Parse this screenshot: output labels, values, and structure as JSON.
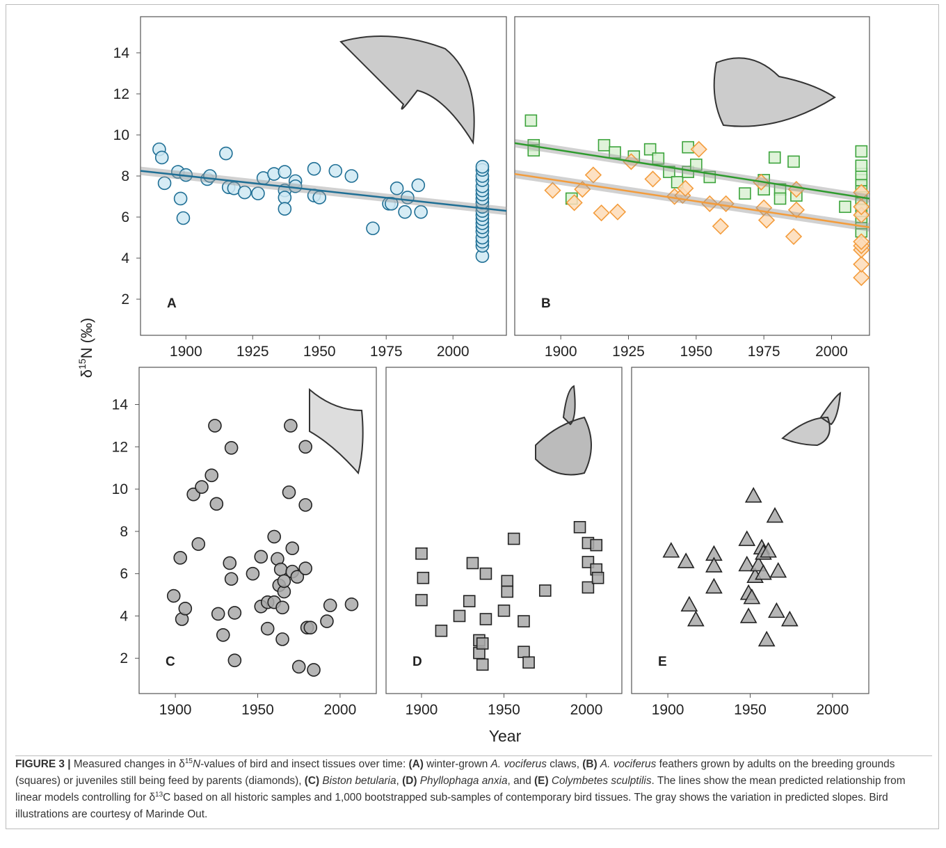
{
  "chart_data": [
    {
      "type": "scatter",
      "title": "A",
      "xlim": [
        1883,
        2020
      ],
      "ylim": [
        0.24,
        15.76
      ],
      "xticks": [
        1900,
        1925,
        1950,
        1975,
        2000
      ],
      "yticks": [
        2,
        4,
        6,
        8,
        10,
        12,
        14
      ],
      "series": [
        {
          "marker": "circle",
          "color": "#1f6f95",
          "fill": "#cfe9f3",
          "x": [
            1890,
            1891,
            1892,
            1897,
            1898,
            1899,
            1900,
            1908,
            1909,
            1915,
            1916,
            1918,
            1922,
            1927,
            1929,
            1933,
            1937,
            1937,
            1937,
            1937,
            1941,
            1941,
            1948,
            1948,
            1950,
            1956,
            1962,
            1970,
            1976,
            1977,
            1979,
            1982,
            1983,
            1987,
            1988,
            2011,
            2011,
            2011,
            2011,
            2011,
            2011,
            2011,
            2011,
            2011,
            2011,
            2011,
            2011,
            2011,
            2011,
            2011,
            2011,
            2011,
            2011,
            2011,
            2011
          ],
          "values": [
            9.3,
            8.9,
            7.65,
            8.2,
            6.9,
            5.95,
            8.05,
            7.85,
            8.0,
            9.1,
            7.45,
            7.4,
            7.2,
            7.15,
            7.9,
            8.1,
            8.2,
            7.3,
            6.95,
            6.4,
            7.75,
            7.5,
            8.35,
            7.05,
            6.95,
            8.25,
            8.0,
            5.45,
            6.65,
            6.65,
            7.4,
            6.25,
            6.95,
            7.55,
            6.25,
            4.1,
            4.6,
            4.8,
            5.0,
            5.3,
            5.5,
            5.7,
            5.9,
            6.1,
            6.3,
            6.5,
            6.7,
            6.9,
            7.1,
            7.3,
            7.5,
            7.8,
            8.0,
            8.3,
            8.45
          ]
        }
      ],
      "lines": [
        {
          "color": "#1f6f95",
          "x": [
            1883,
            2020
          ],
          "values": [
            8.25,
            6.3
          ]
        }
      ]
    },
    {
      "type": "scatter",
      "title": "B",
      "xlim": [
        1883,
        2014
      ],
      "ylim": [
        0.24,
        15.76
      ],
      "xticks": [
        1900,
        1925,
        1950,
        1975,
        2000
      ],
      "series": [
        {
          "marker": "square",
          "color": "#3ba33b",
          "fill": "#dbf1d3",
          "x": [
            1889,
            1890,
            1890,
            1904,
            1916,
            1920,
            1927,
            1933,
            1936,
            1940,
            1943,
            1947,
            1947,
            1950,
            1955,
            1968,
            1975,
            1975,
            1979,
            1981,
            1981,
            1986,
            1987,
            2005,
            2011,
            2011,
            2011,
            2011,
            2011,
            2011,
            2011,
            2011,
            2011,
            2011,
            2011,
            2011
          ],
          "values": [
            10.7,
            9.5,
            9.25,
            6.9,
            9.5,
            9.15,
            8.95,
            9.3,
            8.85,
            8.2,
            7.7,
            9.4,
            8.2,
            8.55,
            7.95,
            7.15,
            7.8,
            7.35,
            8.9,
            7.35,
            6.9,
            8.7,
            7.05,
            6.5,
            5.3,
            5.7,
            6.0,
            6.3,
            6.6,
            6.9,
            7.2,
            7.5,
            7.8,
            8.1,
            8.5,
            9.2
          ]
        },
        {
          "marker": "diamond",
          "color": "#f39c3c",
          "fill": "#fddcb8",
          "x": [
            1897,
            1905,
            1908,
            1912,
            1915,
            1921,
            1926,
            1934,
            1942,
            1945,
            1946,
            1951,
            1955,
            1959,
            1961,
            1974,
            1975,
            1976,
            1986,
            1987,
            1987,
            2011,
            2011,
            2011,
            2011,
            2011,
            2011,
            2011,
            2011
          ],
          "values": [
            7.3,
            6.7,
            7.35,
            8.05,
            6.2,
            6.25,
            8.7,
            7.85,
            7.0,
            7.05,
            7.4,
            9.3,
            6.65,
            5.55,
            6.65,
            7.7,
            6.45,
            5.85,
            5.05,
            6.35,
            7.35,
            3.05,
            3.7,
            4.4,
            4.6,
            4.8,
            6.1,
            6.5,
            7.2
          ]
        }
      ],
      "lines": [
        {
          "color": "#2e9b2e",
          "x": [
            1883,
            2014
          ],
          "values": [
            9.6,
            6.9
          ]
        },
        {
          "color": "#f39c3c",
          "x": [
            1883,
            2014
          ],
          "values": [
            8.1,
            5.5
          ]
        }
      ]
    },
    {
      "type": "scatter",
      "title": "C",
      "xlim": [
        1878,
        2022
      ],
      "ylim": [
        0.33,
        15.76
      ],
      "xticks": [
        1900,
        1950,
        2000
      ],
      "yticks": [
        2,
        4,
        6,
        8,
        10,
        12,
        14
      ],
      "series": [
        {
          "marker": "circle",
          "color": "#222222",
          "fill": "#a9a9a9",
          "x": [
            1899,
            1903,
            1904,
            1906,
            1911,
            1914,
            1916,
            1922,
            1924,
            1925,
            1926,
            1929,
            1933,
            1934,
            1934,
            1936,
            1936,
            1947,
            1952,
            1952,
            1956,
            1956,
            1960,
            1960,
            1962,
            1963,
            1964,
            1965,
            1965,
            1966,
            1966,
            1969,
            1970,
            1971,
            1971,
            1974,
            1975,
            1979,
            1979,
            1979,
            1980,
            1982,
            1984,
            1992,
            1994,
            2007
          ],
          "values": [
            4.95,
            6.75,
            3.85,
            4.35,
            9.75,
            7.4,
            10.1,
            10.65,
            13.0,
            9.3,
            4.1,
            3.1,
            6.5,
            11.95,
            5.75,
            4.15,
            1.9,
            6.0,
            6.8,
            4.45,
            4.65,
            3.4,
            7.75,
            4.65,
            6.7,
            5.45,
            6.2,
            4.4,
            2.9,
            5.15,
            5.65,
            9.85,
            13.0,
            7.2,
            6.1,
            5.85,
            1.6,
            12.0,
            9.25,
            6.25,
            3.45,
            3.45,
            1.45,
            3.75,
            4.5,
            4.55
          ]
        }
      ]
    },
    {
      "type": "scatter",
      "title": "D",
      "xlim": [
        1878.5,
        2021.5
      ],
      "ylim": [
        0.33,
        15.76
      ],
      "xticks": [
        1900,
        1950,
        2000
      ],
      "series": [
        {
          "marker": "square",
          "color": "#222222",
          "fill": "#a9a9a9",
          "x": [
            1900,
            1901,
            1900,
            1912,
            1923,
            1929,
            1931,
            1935,
            1935,
            1937,
            1939,
            1939,
            1937,
            1950,
            1952,
            1952,
            1956,
            1962,
            1962,
            1965,
            1975,
            1996,
            2001,
            2001,
            2001,
            2006,
            2006,
            2007
          ],
          "values": [
            6.95,
            5.8,
            4.75,
            3.3,
            4.0,
            4.7,
            6.5,
            2.85,
            2.25,
            2.7,
            3.85,
            6.0,
            1.7,
            4.25,
            5.65,
            5.15,
            7.65,
            3.75,
            2.3,
            1.8,
            5.2,
            8.2,
            7.45,
            6.55,
            5.35,
            7.35,
            6.2,
            5.8
          ]
        }
      ]
    },
    {
      "type": "scatter",
      "title": "E",
      "xlim": [
        1878,
        2022
      ],
      "ylim": [
        0.33,
        15.76
      ],
      "xticks": [
        1900,
        1950,
        2000
      ],
      "series": [
        {
          "marker": "triangle",
          "color": "#222222",
          "fill": "#a9a9a9",
          "x": [
            1902,
            1911,
            1913,
            1917,
            1928,
            1928,
            1928,
            1948,
            1948,
            1949,
            1949,
            1951,
            1952,
            1953,
            1955,
            1957,
            1958,
            1958,
            1960,
            1961,
            1965,
            1966,
            1967,
            1974
          ],
          "values": [
            7.05,
            6.55,
            4.5,
            3.8,
            6.9,
            6.35,
            5.35,
            7.6,
            6.4,
            5.05,
            3.95,
            4.85,
            9.65,
            5.85,
            6.4,
            7.2,
            6.95,
            6.0,
            2.85,
            7.05,
            8.7,
            4.2,
            6.1,
            3.8
          ]
        }
      ]
    }
  ],
  "y_label": [
    "δ",
    "15",
    "N (‰)"
  ],
  "x_label": "Year",
  "caption": [
    "FIGURE 3 |",
    " Measured changes in δ",
    "15",
    "N",
    "-values of bird and insect tissues over time: ",
    "(A)",
    " winter-grown ",
    "A. vociferus",
    " claws, ",
    "(B) ",
    "A. vociferus",
    " feathers grown by adults on the breeding grounds (squares) or juveniles still being feed by parents (diamonds), ",
    "(C) ",
    "Biston betularia",
    ", ",
    "(D) ",
    "Phyllophaga anxia",
    ", and ",
    "(E) ",
    "Colymbetes sculptilis",
    ". The lines show the mean predicted relationship from linear models controlling for δ",
    "13",
    "C based on all historic samples and 1,000 bootstrapped sub-samples of contemporary bird tissues. The gray shows the variation in predicted slopes. Bird illustrations are courtesy of Marinde Out."
  ]
}
